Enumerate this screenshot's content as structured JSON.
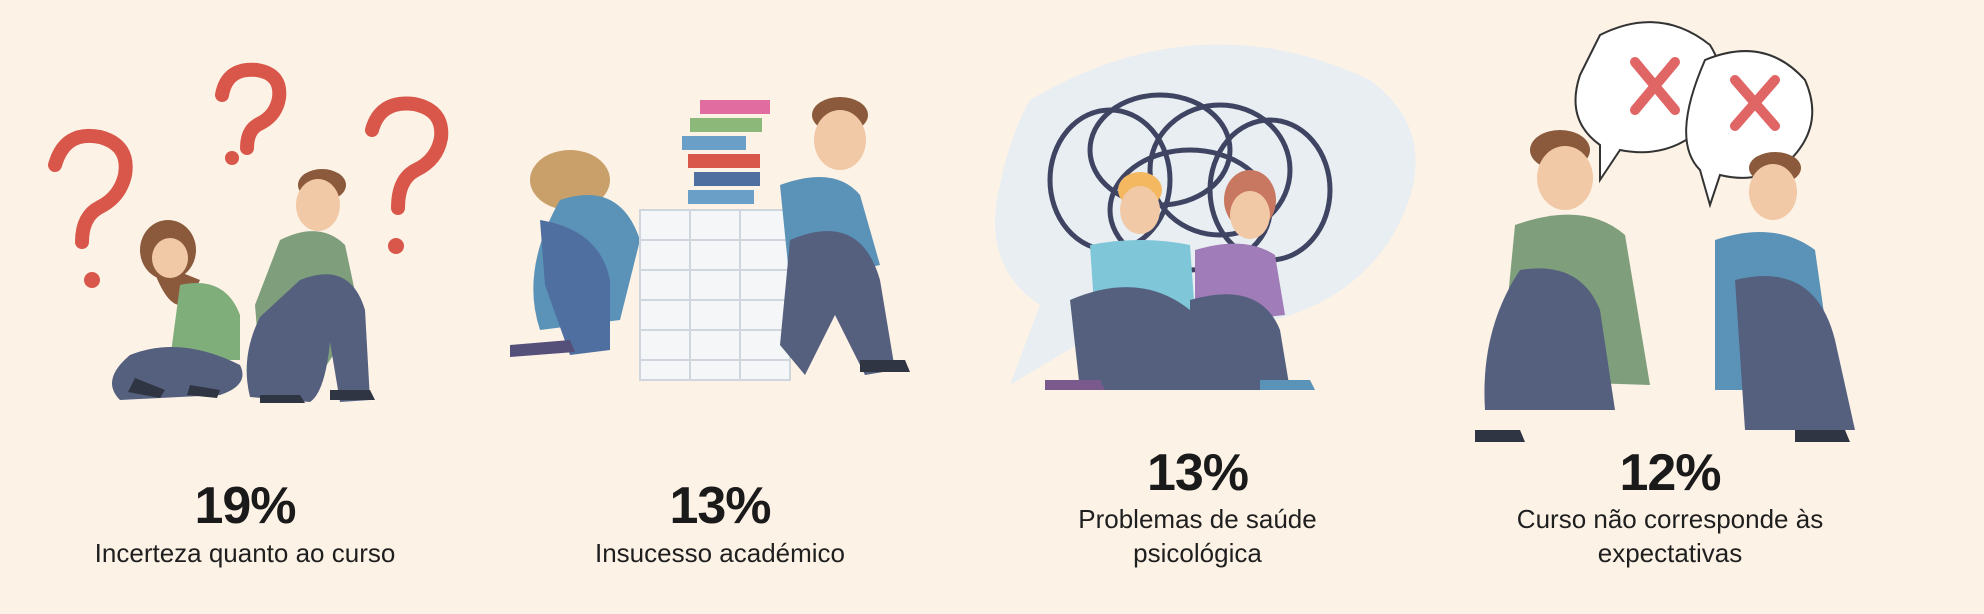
{
  "colors": {
    "background": "#fdf2e6",
    "question_mark": "#d9574a",
    "green_shirt": "#7f9e7b",
    "blue_shirt": "#5b93b8",
    "jeans": "#55607f",
    "skin": "#f2c9a6",
    "hair_brown": "#8b5a3c",
    "bubble": "#e8eef2",
    "scribble": "#3e4461",
    "x_mark": "#e06666"
  },
  "items": [
    {
      "percent": "19%",
      "label": "Incerteza quanto ao curso",
      "illustration": "question-marks-couple-icon"
    },
    {
      "percent": "13%",
      "label": "Insucesso académico",
      "illustration": "books-paper-stack-icon"
    },
    {
      "percent": "13%",
      "label_line1": "Problemas de saúde",
      "label_line2": "psicológica",
      "illustration": "scribble-speech-bubble-icon"
    },
    {
      "percent": "12%",
      "label_line1": "Curso não corresponde às",
      "label_line2": "expectativas",
      "illustration": "x-speech-bubbles-icon"
    }
  ]
}
